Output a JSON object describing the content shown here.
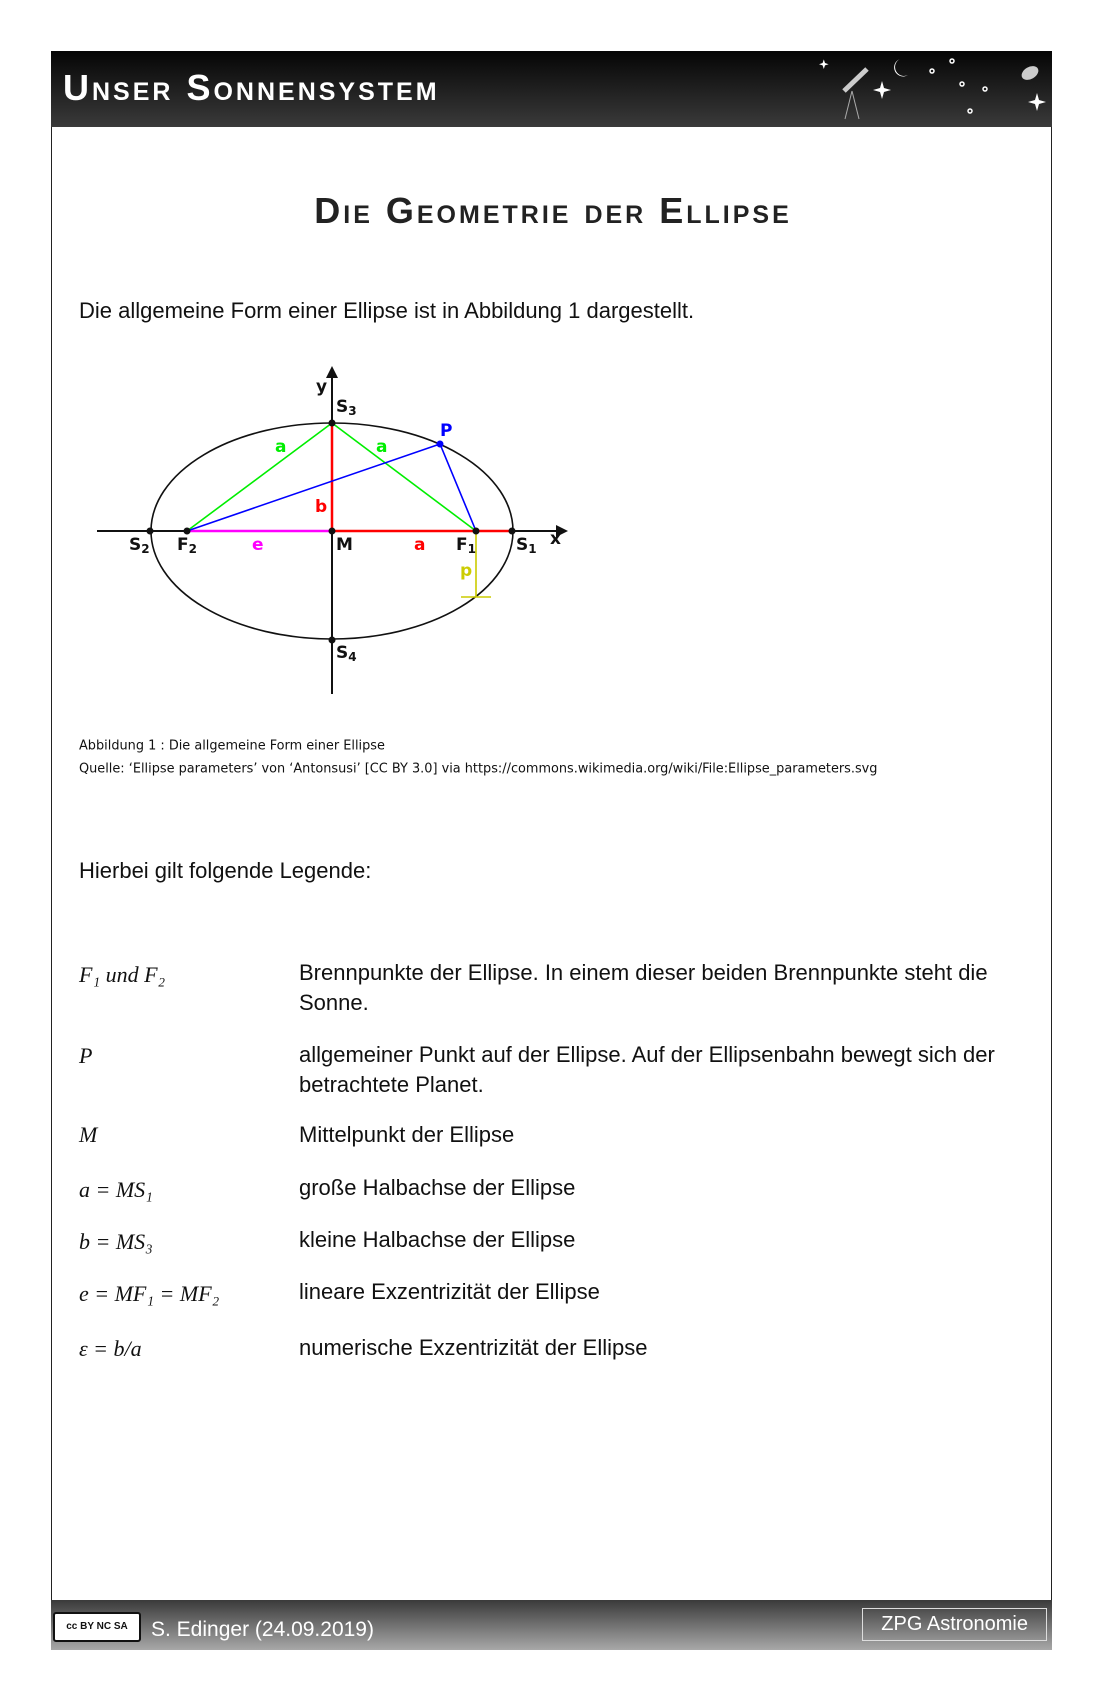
{
  "header": {
    "title": "Unser Sonnensystem"
  },
  "page_title": "Die Geometrie der Ellipse",
  "intro": "Die allgemeine Form einer Ellipse ist in Abbildung 1 dargestellt.",
  "figure": {
    "labels": {
      "y": "y",
      "x": "x",
      "S3": "S",
      "S4": "S",
      "S1": "S",
      "S2": "S",
      "F1": "F",
      "F2": "F",
      "M": "M",
      "P": "P",
      "a1": "a",
      "a2": "a",
      "a3": "a",
      "b": "b",
      "e": "e",
      "p": "p",
      "s1": "1",
      "s2": "2",
      "s3": "3",
      "s4": "4",
      "f1": "1",
      "f2": "2"
    },
    "colors": {
      "foci_lines": "#00ee00",
      "radii": "#ff0000",
      "point": "#0000ff",
      "eccentricity": "#ff00ff",
      "semi_latus": "#cccc00"
    }
  },
  "caption": {
    "line1": "Abbildung 1 : Die allgemeine Form einer Ellipse",
    "line2": "Quelle: ‘Ellipse parameters’ von ‘Antonsusi’ [CC BY 3.0] via https://commons.wikimedia.org/wiki/File:Ellipse_parameters.svg"
  },
  "legend_intro": "Hierbei gilt folgende Legende:",
  "legend": [
    {
      "symbol": "F₁ und F₂",
      "desc": "Brennpunkte der Ellipse. In einem dieser beiden Brennpunkte steht die Sonne."
    },
    {
      "symbol": "P",
      "desc": "allgemeiner Punkt auf der Ellipse. Auf der Ellipsenbahn bewegt sich der betrachtete Planet."
    },
    {
      "symbol": "M",
      "desc": "Mittelpunkt der Ellipse"
    },
    {
      "symbol": "a = MS₁",
      "desc": "große Halbachse der Ellipse"
    },
    {
      "symbol": "b = MS₃",
      "desc": "kleine Halbachse der Ellipse"
    },
    {
      "symbol": "e = MF₁ = MF₂",
      "desc": "lineare Exzentrizität der Ellipse"
    },
    {
      "symbol": "ε = b/a",
      "desc": "numerische Exzentrizität der Ellipse"
    }
  ],
  "footer": {
    "license": "cc by nc sa",
    "author": "S. Edinger (24.09.2019)",
    "org": "ZPG Astronomie"
  }
}
